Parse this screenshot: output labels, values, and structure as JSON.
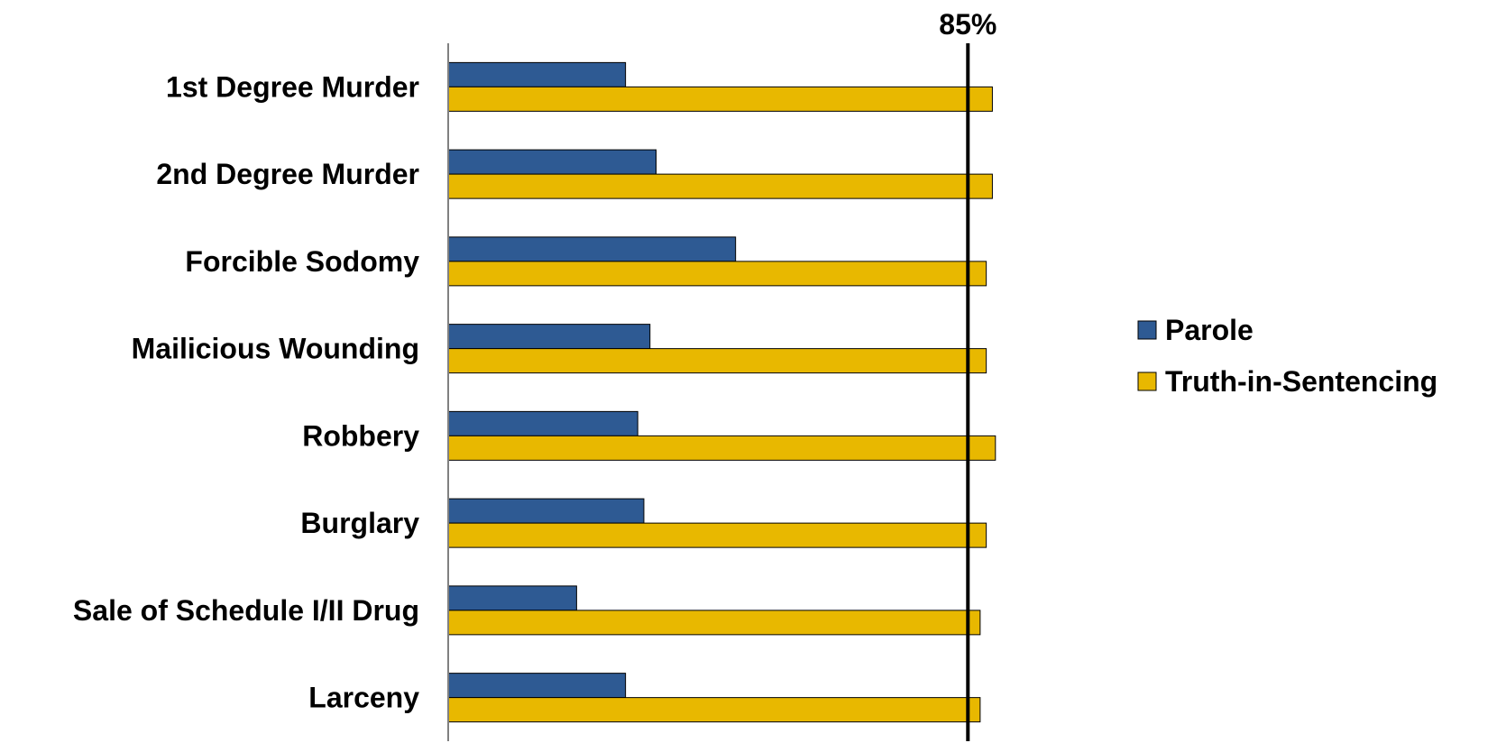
{
  "chart_data": {
    "type": "bar",
    "orientation": "horizontal",
    "categories": [
      "1st Degree Murder",
      "2nd Degree Murder",
      "Forcible Sodomy",
      "Mailicious Wounding",
      "Robbery",
      "Burglary",
      "Sale of Schedule I/II Drug",
      "Larceny"
    ],
    "series": [
      {
        "name": "Parole",
        "color": "#2E5A93",
        "values": [
          29,
          34,
          47,
          33,
          31,
          32,
          21,
          29
        ]
      },
      {
        "name": "Truth-in-Sentencing",
        "color": "#E8B800",
        "values": [
          89,
          89,
          88,
          88,
          89.5,
          88,
          87,
          87
        ]
      }
    ],
    "reference_line": {
      "value": 85,
      "label": "85%"
    },
    "xlim": [
      0,
      100
    ],
    "title": "",
    "xlabel": "",
    "ylabel": "",
    "grid": false,
    "legend": "right"
  }
}
